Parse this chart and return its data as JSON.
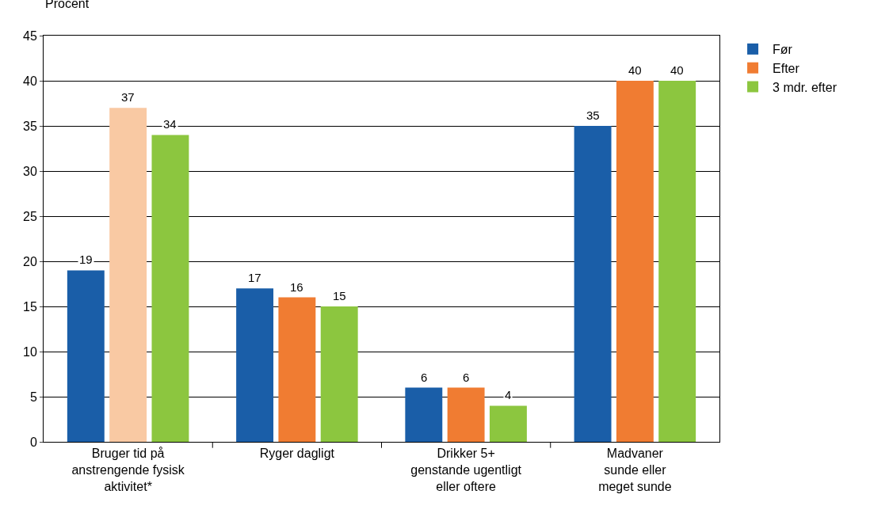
{
  "chart_data": {
    "type": "bar",
    "ylabel": "Procent",
    "categories": [
      "Bruger tid på\nanstrengende fysisk\naktivitet*",
      "Ryger dagligt",
      "Drikker 5+\ngenstande ugentligt\neller oftere",
      "Madvaner\nsunde eller\nmeget sunde"
    ],
    "series": [
      {
        "name": "Før",
        "color": "#1a5ea8",
        "values": [
          19,
          17,
          6,
          35
        ]
      },
      {
        "name": "Efter",
        "color": "#f07c32",
        "colors": [
          "#f9c9a3",
          "#f07c32",
          "#f07c32",
          "#f07c32"
        ],
        "values": [
          37,
          16,
          6,
          40
        ]
      },
      {
        "name": "3 mdr. efter",
        "color": "#8cc63f",
        "values": [
          34,
          15,
          4,
          40
        ]
      }
    ],
    "ylim": [
      0,
      45
    ],
    "yticks": [
      0,
      5,
      10,
      15,
      20,
      25,
      30,
      35,
      40,
      45
    ],
    "grid": "y",
    "legend": "top right",
    "data_labels": true
  }
}
